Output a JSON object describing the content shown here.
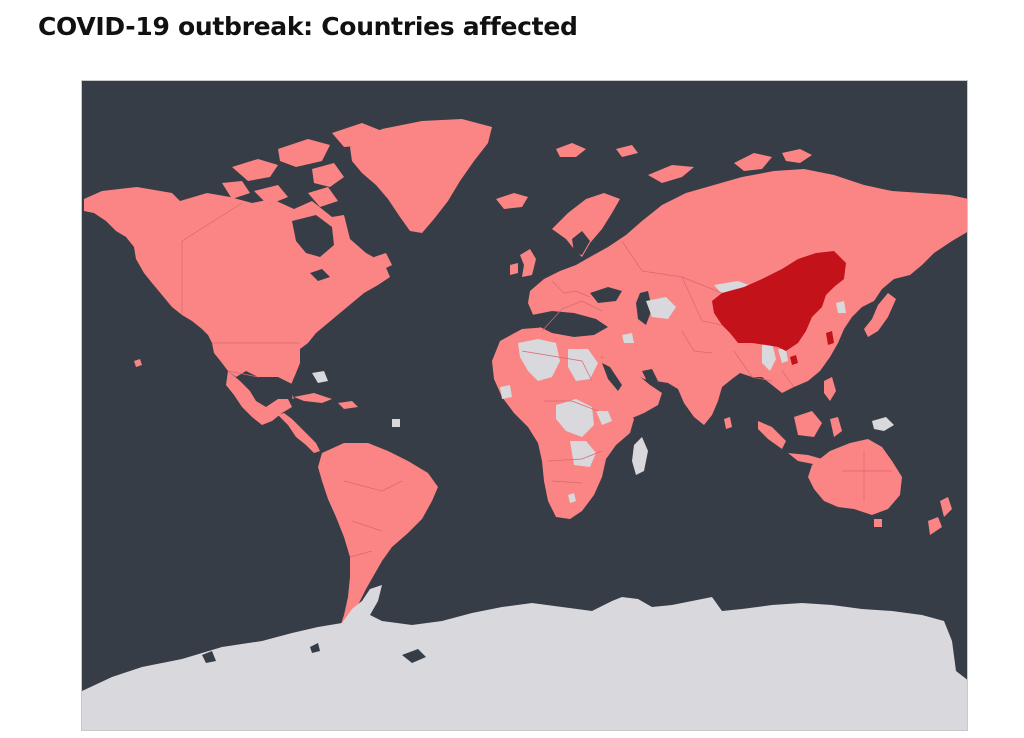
{
  "title": "COVID-19 outbreak: Countries affected",
  "map": {
    "colors": {
      "ocean": "#373d47",
      "affected": "#fb8585",
      "most_affected": "#c4121b",
      "not_affected": "#d9d8dc",
      "border": "#e0767a"
    },
    "most_affected_regions": [
      "China"
    ],
    "unaffected_regions": [
      "Antarctica",
      "Central Africa",
      "Madagascar",
      "Papua New Guinea",
      "Mongolia",
      "Myanmar"
    ]
  }
}
